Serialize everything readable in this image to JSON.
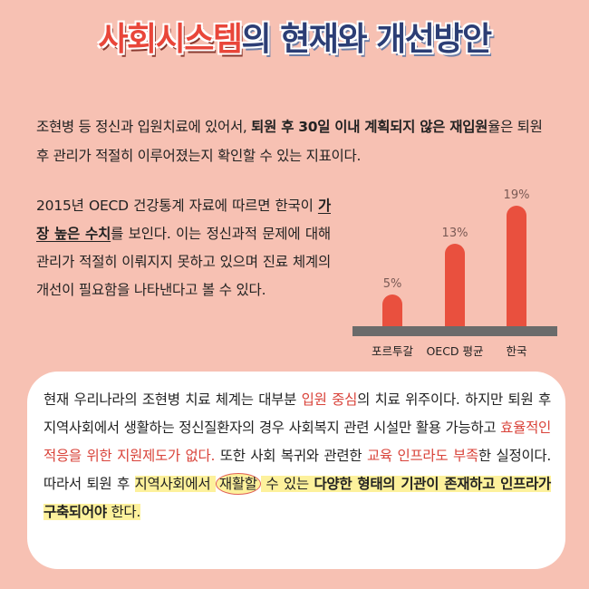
{
  "title": {
    "part1": "사회시스템",
    "part2": "의 현재와 개선방안"
  },
  "intro": {
    "s1": "조현병 등 정신과 입원치료에 있어서, ",
    "b1": "퇴원 후 30일 이내 계획되지 않은 재입원",
    "s2": "율은 퇴원 후 관리가 적절히 이루어졌는지 확인할 수 있는 지표이다."
  },
  "side": {
    "s1": "2015년 OECD 건강통계 자료에 따르면 한국이 ",
    "u1": "가장 높은 수치",
    "s2": "를 보인다. 이는 정신과적 문제에 대해 관리가 적절히 이뤄지지 못하고 있으며 진료 체계의 개선이 필요함을 나타낸다고 볼 수 있다."
  },
  "card": {
    "s1": "현재 우리나라의 조현병 치료 체계는 대부분 ",
    "r1": "입원 중심",
    "s2": "의 치료 위주이다. 하지만 퇴원 후 지역사회에서 생활하는 정신질환자의 경우 사회복지 관련 시설만 활용 가능하고 ",
    "r2": "효율적인 적응을 위한 지원제도가 없다.",
    "s3": " 또한 사회 복귀와 관련한 ",
    "r3": "교육 인프라도 부족",
    "s4": "한 실정이다. 따라서 퇴원 후 ",
    "h1": "지역사회에서 ",
    "h2": "재활할",
    "h3": " 수 있는 ",
    "h4": "다양한 형태의 기관이 존재하고 인프라가 구축되어야",
    "h5": " 한다."
  },
  "colors": {
    "background": "#f7c1b3",
    "bar": "#e9503e",
    "baseline": "#6b6b6b",
    "accent_red": "#d9433a",
    "highlight": "#fdf19c",
    "title_blue": "#2c3e75"
  },
  "chart_data": {
    "type": "bar",
    "categories": [
      "포르투갈",
      "OECD 평균",
      "한국"
    ],
    "values": [
      5,
      13,
      19
    ],
    "value_labels": [
      "5%",
      "13%",
      "19%"
    ],
    "unit": "%",
    "title": "",
    "xlabel": "",
    "ylabel": "",
    "ylim": [
      0,
      20
    ],
    "grid": false,
    "legend": "none"
  }
}
